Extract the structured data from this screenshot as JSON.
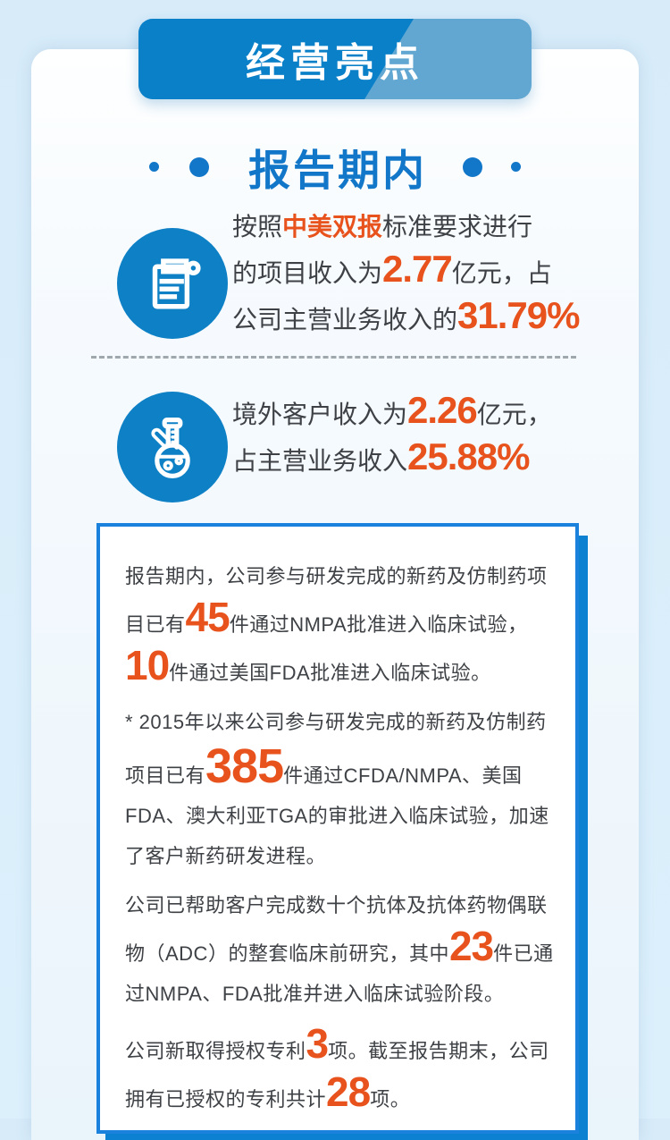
{
  "colors": {
    "page_bg": "#d7ebf9",
    "card_bg": "#f7fbfe",
    "banner_blue": "#0a80c8",
    "banner_light": "#61a7d1",
    "title_blue": "#1277c8",
    "icon_blue": "#0e81c6",
    "orange": "#e8521d",
    "text": "#3e4145",
    "box_border": "#1a81dc",
    "box_shadow": "#0c81d2"
  },
  "banner": {
    "title": "经营亮点"
  },
  "section": {
    "title": "报告期内"
  },
  "items": [
    {
      "icon": "clipboard-icon",
      "segments": [
        {
          "t": "按照",
          "s": "n"
        },
        {
          "t": "中美双报",
          "s": "o"
        },
        {
          "t": "标准要求进行\n的项目收入为",
          "s": "n"
        },
        {
          "t": "2.77",
          "s": "b"
        },
        {
          "t": "亿元，占\n公司主营业务收入的",
          "s": "n"
        },
        {
          "t": "31.79%",
          "s": "b"
        }
      ]
    },
    {
      "icon": "flask-icon",
      "segments": [
        {
          "t": "境外客户收入为",
          "s": "n"
        },
        {
          "t": "2.26",
          "s": "b"
        },
        {
          "t": "亿元，\n占主营业务收入",
          "s": "n"
        },
        {
          "t": "25.88%",
          "s": "b"
        }
      ]
    }
  ],
  "info_box": {
    "paragraphs": [
      {
        "segments": [
          {
            "t": "报告期内，公司参与研发完成的新药及仿制药项目已有",
            "s": "n"
          },
          {
            "t": "45",
            "s": "b"
          },
          {
            "t": "件通过NMPA批准进入临床试验，",
            "s": "n"
          },
          {
            "t": "10",
            "s": "b"
          },
          {
            "t": "件通过美国FDA批准进入临床试验。",
            "s": "n"
          }
        ]
      },
      {
        "segments": [
          {
            "t": "* 2015年以来公司参与研发完成的新药及仿制药项目已有",
            "s": "n"
          },
          {
            "t": "385",
            "s": "B"
          },
          {
            "t": "件通过CFDA/NMPA、美国FDA、澳大利亚TGA的审批进入临床试验，加速了客户新药研发进程。",
            "s": "n"
          }
        ]
      },
      {
        "segments": [
          {
            "t": "公司已帮助客户完成数十个抗体及抗体药物偶联物（ADC）的整套临床前研究，其中",
            "s": "n"
          },
          {
            "t": "23",
            "s": "b"
          },
          {
            "t": "件已通过NMPA、FDA批准并进入临床试验阶段。",
            "s": "n"
          }
        ]
      },
      {
        "segments": [
          {
            "t": "公司新取得授权专利",
            "s": "n"
          },
          {
            "t": "3",
            "s": "b"
          },
          {
            "t": "项。截至报告期末，公司拥有已授权的专利共计",
            "s": "n"
          },
          {
            "t": "28",
            "s": "b"
          },
          {
            "t": "项。",
            "s": "n"
          }
        ]
      }
    ]
  }
}
